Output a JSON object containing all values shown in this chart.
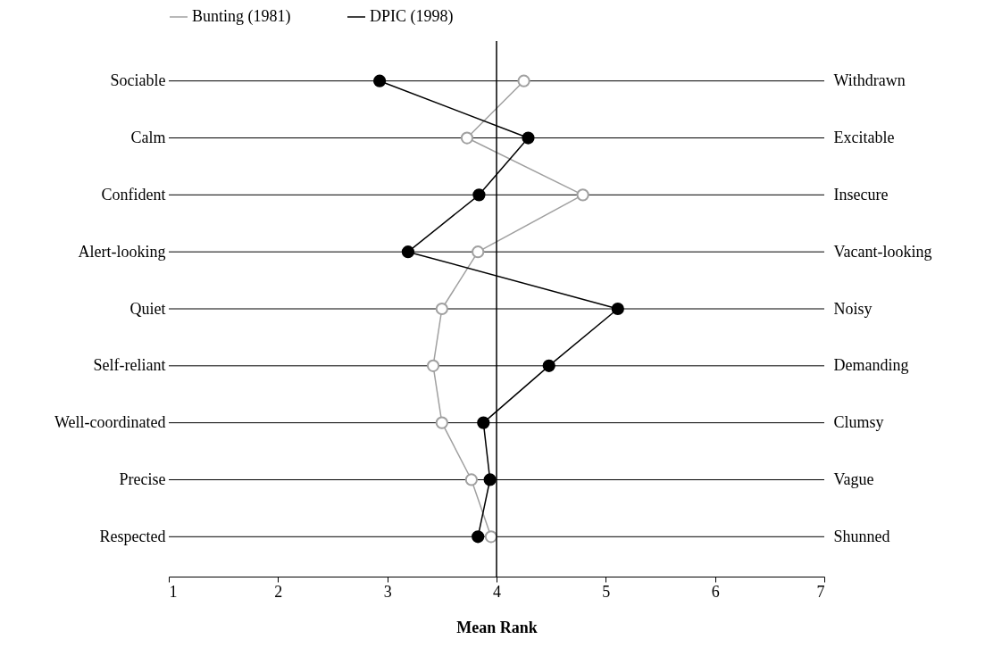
{
  "chart_data": {
    "type": "line",
    "orientation": "horizontal",
    "xlabel": "Mean Rank",
    "categories": [
      "Sociable",
      "Calm",
      "Confident",
      "Alert-looking",
      "Quiet",
      "Self-reliant",
      "Well-coordinated",
      "Precise",
      "Respected"
    ],
    "y2_categories": [
      "Withdrawn",
      "Excitable",
      "Insecure",
      "Vacant-looking",
      "Noisy",
      "Demanding",
      "Clumsy",
      "Vague",
      "Shunned"
    ],
    "series": [
      {
        "name": "Bunting (1981)",
        "color": "#a0a0a0",
        "values": [
          4.25,
          3.73,
          4.79,
          3.83,
          3.5,
          3.42,
          3.5,
          3.77,
          3.95
        ]
      },
      {
        "name": "DPIC (1998)",
        "color": "#000000",
        "values": [
          2.93,
          4.29,
          3.84,
          3.19,
          5.11,
          4.48,
          3.88,
          3.94,
          3.83
        ]
      }
    ],
    "xlim": [
      1,
      7
    ],
    "xticks": [
      1,
      2,
      3,
      4,
      5,
      6,
      7
    ],
    "grid": "y",
    "legend": "top",
    "marker": "circle",
    "ref_lines": [
      {
        "axis": "x",
        "value": 4
      }
    ]
  }
}
